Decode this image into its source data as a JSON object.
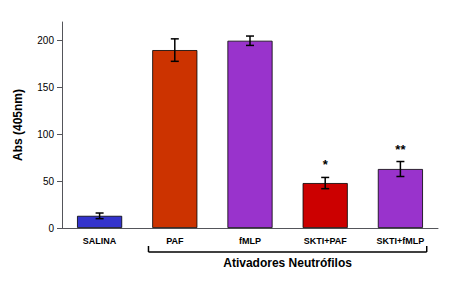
{
  "chart_data": {
    "type": "bar",
    "categories": [
      "SALINA",
      "PAF",
      "fMLP",
      "SKTI+PAF",
      "SKTI+fMLP"
    ],
    "values": [
      13,
      190,
      200,
      48,
      63
    ],
    "errors": [
      3,
      12,
      5,
      6,
      8
    ],
    "colors": [
      "#3333cc",
      "#cc3300",
      "#9933cc",
      "#cc0000",
      "#9933cc"
    ],
    "ylabel": "Abs (405nm)",
    "ylim": [
      0,
      220
    ],
    "yticks": [
      0,
      50,
      100,
      150,
      200
    ],
    "grid": false,
    "annotations": [
      {
        "text": "*",
        "category": "SKTI+PAF"
      },
      {
        "text": "**",
        "category": "SKTI+fMLP"
      },
      {
        "text": "Ativadores Neutrófilos",
        "categories": [
          "PAF",
          "fMLP",
          "SKTI+PAF",
          "SKTI+fMLP"
        ]
      }
    ]
  }
}
